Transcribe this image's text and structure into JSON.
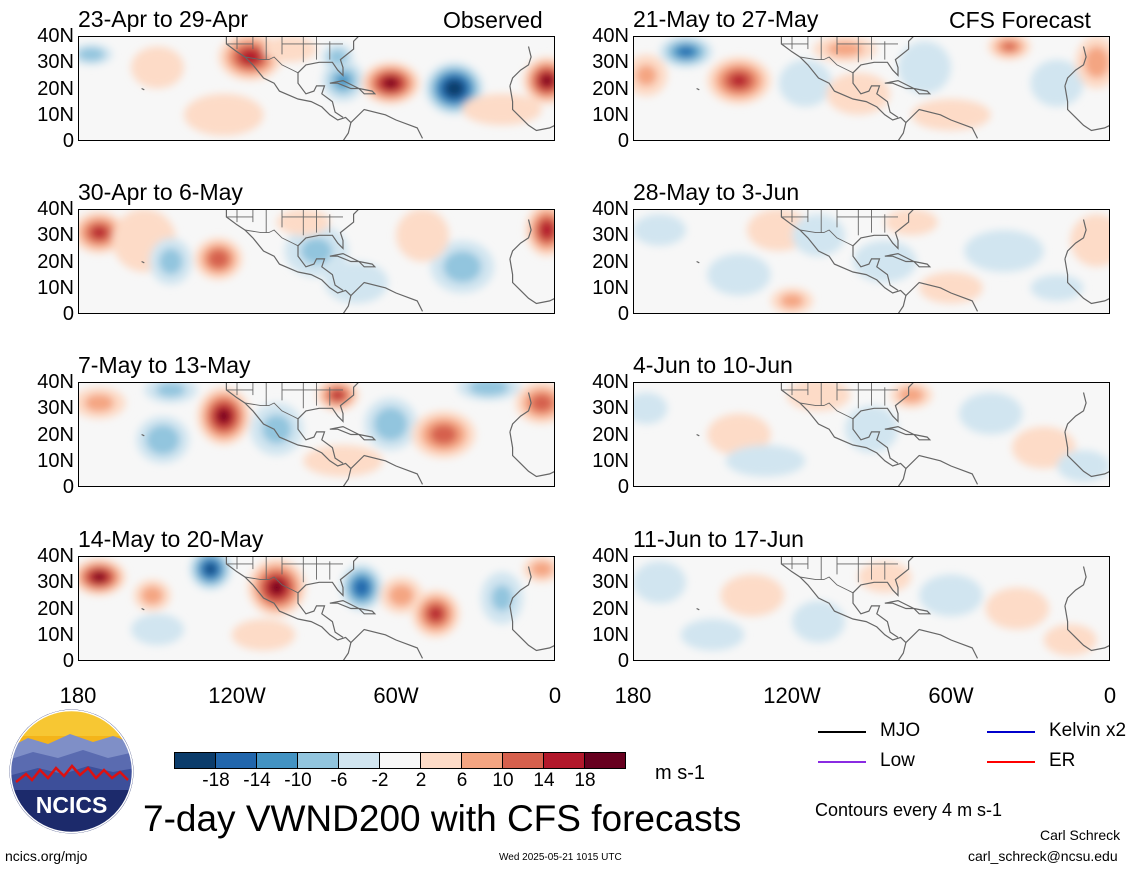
{
  "header": {
    "observed_label": "Observed",
    "forecast_label": "CFS Forecast"
  },
  "chart_data": {
    "type": "heatmap",
    "variable": "VWND200",
    "units": "m s-1",
    "title": "7-day VWND200 with CFS forecasts",
    "contour_note": "Contours every 4 m s-1",
    "x_ticks": [
      "180",
      "120W",
      "60W",
      "0"
    ],
    "y_ticks": [
      "40N",
      "30N",
      "20N",
      "10N",
      "0"
    ],
    "xlim": [
      -180,
      0
    ],
    "ylim": [
      0,
      40
    ],
    "colorbar": {
      "labels": [
        "-18",
        "-14",
        "-10",
        "-6",
        "-2",
        "2",
        "6",
        "10",
        "14",
        "18"
      ],
      "colors": [
        "#0b3c6b",
        "#2166ac",
        "#4393c3",
        "#92c5de",
        "#d1e5f0",
        "#f7f7f7",
        "#fddbc7",
        "#f4a582",
        "#d6604d",
        "#b2182b",
        "#67001f"
      ]
    },
    "legend": [
      {
        "label": "MJO",
        "color": "#000000"
      },
      {
        "label": "Kelvin x2",
        "color": "#0000cc"
      },
      {
        "label": "Low",
        "color": "#8a2be2"
      },
      {
        "label": "ER",
        "color": "#ff0000"
      }
    ],
    "panels": [
      {
        "title": "23-Apr to 29-Apr",
        "kind": "observed",
        "blobs": [
          [
            -175,
            33,
            8,
            4,
            -9
          ],
          [
            -150,
            28,
            10,
            8,
            4
          ],
          [
            -115,
            32,
            12,
            9,
            16
          ],
          [
            -80,
            23,
            8,
            8,
            -10
          ],
          [
            -82,
            32,
            6,
            5,
            -8
          ],
          [
            -62,
            22,
            11,
            8,
            18
          ],
          [
            -38,
            20,
            11,
            10,
            -22
          ],
          [
            -3,
            23,
            9,
            9,
            18
          ],
          [
            -125,
            10,
            15,
            8,
            2
          ],
          [
            -20,
            12,
            15,
            6,
            3
          ],
          [
            -100,
            35,
            10,
            5,
            3
          ]
        ]
      },
      {
        "title": "30-Apr to 6-May",
        "kind": "observed",
        "blobs": [
          [
            -172,
            31,
            10,
            8,
            14
          ],
          [
            -155,
            28,
            12,
            12,
            3
          ],
          [
            -145,
            20,
            8,
            9,
            -7
          ],
          [
            -127,
            21,
            9,
            8,
            13
          ],
          [
            -90,
            24,
            12,
            10,
            -6
          ],
          [
            -95,
            35,
            10,
            5,
            3
          ],
          [
            -35,
            18,
            12,
            10,
            -8
          ],
          [
            -50,
            30,
            10,
            10,
            3
          ],
          [
            -3,
            32,
            8,
            10,
            16
          ],
          [
            -75,
            12,
            12,
            8,
            -3
          ]
        ]
      },
      {
        "title": "7-May to 13-May",
        "kind": "observed",
        "blobs": [
          [
            -172,
            32,
            10,
            6,
            7
          ],
          [
            -148,
            18,
            10,
            9,
            -9
          ],
          [
            -145,
            37,
            10,
            5,
            -7
          ],
          [
            -125,
            27,
            10,
            11,
            18
          ],
          [
            -105,
            22,
            10,
            10,
            -7
          ],
          [
            -82,
            35,
            8,
            6,
            14
          ],
          [
            -62,
            24,
            10,
            10,
            -9
          ],
          [
            -42,
            20,
            12,
            9,
            12
          ],
          [
            -25,
            38,
            12,
            5,
            -9
          ],
          [
            -5,
            32,
            10,
            8,
            12
          ],
          [
            -80,
            10,
            15,
            6,
            3
          ]
        ]
      },
      {
        "title": "14-May to 20-May",
        "kind": "observed",
        "blobs": [
          [
            -172,
            32,
            10,
            7,
            18
          ],
          [
            -152,
            25,
            7,
            6,
            8
          ],
          [
            -130,
            35,
            8,
            8,
            -18
          ],
          [
            -105,
            28,
            11,
            11,
            18
          ],
          [
            -73,
            28,
            8,
            9,
            -16
          ],
          [
            -45,
            18,
            9,
            9,
            14
          ],
          [
            -58,
            25,
            8,
            7,
            8
          ],
          [
            -20,
            24,
            8,
            10,
            -6
          ],
          [
            -5,
            35,
            7,
            5,
            8
          ],
          [
            -110,
            10,
            12,
            6,
            3
          ],
          [
            -150,
            12,
            10,
            6,
            -3
          ]
        ]
      },
      {
        "title": "21-May to 27-May",
        "kind": "forecast",
        "blobs": [
          [
            -160,
            34,
            10,
            6,
            -14
          ],
          [
            -140,
            23,
            12,
            9,
            14
          ],
          [
            -175,
            25,
            8,
            8,
            6
          ],
          [
            -115,
            22,
            10,
            9,
            -5
          ],
          [
            -100,
            35,
            12,
            5,
            7
          ],
          [
            -95,
            18,
            12,
            8,
            3
          ],
          [
            -70,
            28,
            10,
            10,
            -4
          ],
          [
            -20,
            22,
            10,
            9,
            -4
          ],
          [
            -5,
            30,
            8,
            10,
            8
          ],
          [
            -38,
            36,
            8,
            5,
            10
          ],
          [
            -60,
            10,
            15,
            6,
            2
          ]
        ]
      },
      {
        "title": "28-May to 3-Jun",
        "kind": "forecast",
        "blobs": [
          [
            -170,
            32,
            10,
            6,
            -3
          ],
          [
            -125,
            32,
            12,
            8,
            5
          ],
          [
            -110,
            30,
            10,
            8,
            -3
          ],
          [
            -140,
            15,
            12,
            8,
            -3
          ],
          [
            -120,
            5,
            8,
            5,
            7
          ],
          [
            -75,
            35,
            10,
            5,
            5
          ],
          [
            -85,
            20,
            12,
            8,
            -3
          ],
          [
            -40,
            24,
            15,
            8,
            -3
          ],
          [
            -5,
            28,
            10,
            10,
            3
          ],
          [
            -60,
            10,
            12,
            6,
            3
          ],
          [
            -20,
            10,
            10,
            5,
            -2
          ]
        ]
      },
      {
        "title": "4-Jun to 10-Jun",
        "kind": "forecast",
        "blobs": [
          [
            -175,
            30,
            8,
            6,
            -3
          ],
          [
            -140,
            20,
            12,
            8,
            3
          ],
          [
            -110,
            35,
            12,
            6,
            5
          ],
          [
            -90,
            22,
            10,
            9,
            -5
          ],
          [
            -75,
            35,
            8,
            5,
            8
          ],
          [
            -45,
            28,
            12,
            8,
            -3
          ],
          [
            -25,
            15,
            12,
            8,
            3
          ],
          [
            -10,
            8,
            10,
            6,
            -3
          ],
          [
            -130,
            10,
            15,
            6,
            -2
          ]
        ]
      },
      {
        "title": "11-Jun to 17-Jun",
        "kind": "forecast",
        "blobs": [
          [
            -170,
            30,
            10,
            8,
            -3
          ],
          [
            -135,
            25,
            12,
            8,
            2
          ],
          [
            -110,
            15,
            10,
            8,
            -3
          ],
          [
            -85,
            32,
            10,
            6,
            3
          ],
          [
            -60,
            25,
            12,
            8,
            -2
          ],
          [
            -35,
            20,
            12,
            8,
            2
          ],
          [
            -15,
            8,
            10,
            6,
            2
          ],
          [
            -150,
            10,
            12,
            6,
            -2
          ]
        ]
      }
    ]
  },
  "branding": {
    "logo_text": "NCICS",
    "url": "ncics.org/mjo",
    "timestamp": "Wed 2025-05-21 1015 UTC",
    "author": "Carl Schreck",
    "email": "carl_schreck@ncsu.edu"
  }
}
